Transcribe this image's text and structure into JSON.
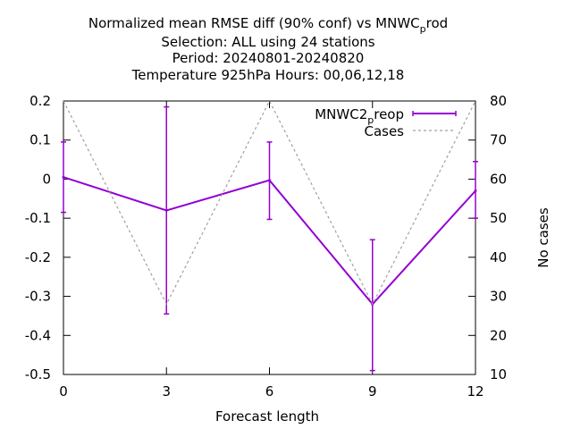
{
  "chart_data": {
    "type": "line",
    "title": [
      {
        "main": "Normalized mean RMSE diff (90% conf) vs MNWC",
        "sub": "p",
        "tail": "rod"
      },
      {
        "main": "Selection: ALL using    24 stations"
      },
      {
        "main": "Period: 20240801-20240820"
      },
      {
        "main": "Temperature 925hPa    Hours:  00,06,12,18"
      }
    ],
    "xlabel": "Forecast length",
    "ylabel": "",
    "y2label": "No cases",
    "x": [
      0,
      3,
      6,
      9,
      12
    ],
    "xlim": [
      0,
      12
    ],
    "ylim": [
      -0.5,
      0.2
    ],
    "y2lim": [
      10,
      80
    ],
    "xticks": [
      "0",
      "3",
      "6",
      "9",
      "12"
    ],
    "yticks": [
      "0.2",
      "0.1",
      "0",
      "-0.1",
      "-0.2",
      "-0.3",
      "-0.4",
      "-0.5"
    ],
    "y2ticks": [
      "80",
      "70",
      "60",
      "50",
      "40",
      "30",
      "20",
      "10"
    ],
    "grid": false,
    "legend_position": "top-right",
    "series": [
      {
        "name": "MNWC2",
        "name_sub": "p",
        "name_tail": "reop",
        "axis": "y",
        "style": "errorbar-line",
        "color": "#9400d3",
        "values": [
          0.005,
          -0.08,
          -0.003,
          -0.32,
          -0.03
        ],
        "err_low": [
          -0.085,
          -0.345,
          -0.103,
          -0.49,
          -0.1
        ],
        "err_high": [
          0.095,
          0.185,
          0.095,
          -0.155,
          0.045
        ]
      },
      {
        "name": "Cases",
        "axis": "y2",
        "style": "dashed",
        "color": "#a0a0a0",
        "values": [
          80,
          28,
          80,
          28,
          80
        ]
      }
    ]
  }
}
